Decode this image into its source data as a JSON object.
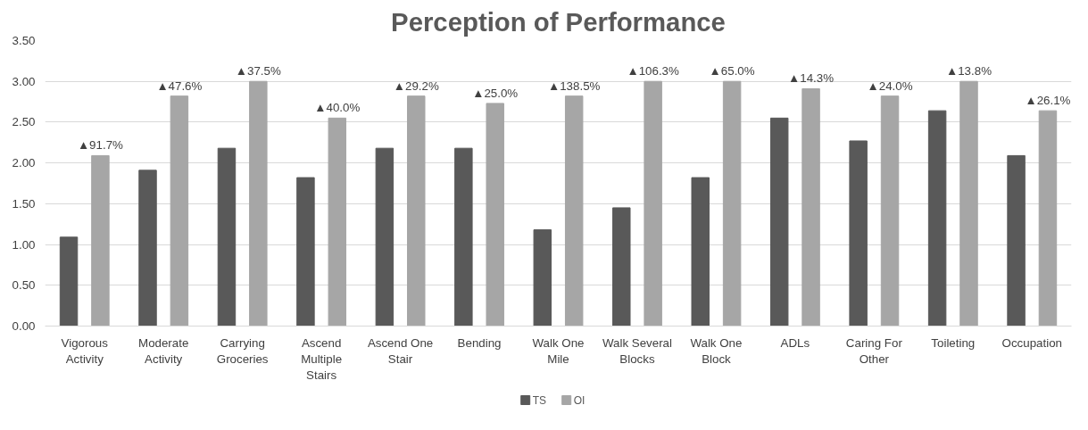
{
  "chart_data": {
    "type": "bar",
    "title": "Perception of Performance",
    "categories": [
      "Vigorous Activity",
      "Moderate Activity",
      "Carrying Groceries",
      "Ascend Multiple Stairs",
      "Ascend One Stair",
      "Bending",
      "Walk One Mile",
      "Walk Several Blocks",
      "Walk One Block",
      "ADLs",
      "Caring For Other",
      "Toileting",
      "Occupation"
    ],
    "series": [
      {
        "name": "TS",
        "color": "#595959",
        "values": [
          1.09,
          1.91,
          2.18,
          1.82,
          2.18,
          2.18,
          1.18,
          1.45,
          1.82,
          2.55,
          2.27,
          2.64,
          2.09
        ]
      },
      {
        "name": "OI",
        "color": "#a6a6a6",
        "values": [
          2.09,
          2.82,
          3.0,
          2.55,
          2.82,
          2.73,
          2.82,
          3.0,
          3.0,
          2.91,
          2.82,
          3.0,
          2.64
        ]
      }
    ],
    "ylim": [
      0,
      3.5
    ],
    "yticks": [
      {
        "value": 0,
        "label": "0.00"
      },
      {
        "value": 0.5,
        "label": "0.50"
      },
      {
        "value": 1,
        "label": "1.00"
      },
      {
        "value": 1.5,
        "label": "1.50"
      },
      {
        "value": 2,
        "label": "2.00"
      },
      {
        "value": 2.5,
        "label": "2.50"
      },
      {
        "value": 3,
        "label": "3.00"
      },
      {
        "value": 3.5,
        "label": "3.50"
      }
    ],
    "grid": "y",
    "legend": "bottom",
    "annotations": [
      "▲91.7%",
      "▲47.6%",
      "▲37.5%",
      "▲40.0%",
      "▲29.2%",
      "▲25.0%",
      "▲138.5%",
      "▲106.3%",
      "▲65.0%",
      "▲14.3%",
      "▲24.0%",
      "▲13.8%",
      "▲26.1%"
    ]
  }
}
